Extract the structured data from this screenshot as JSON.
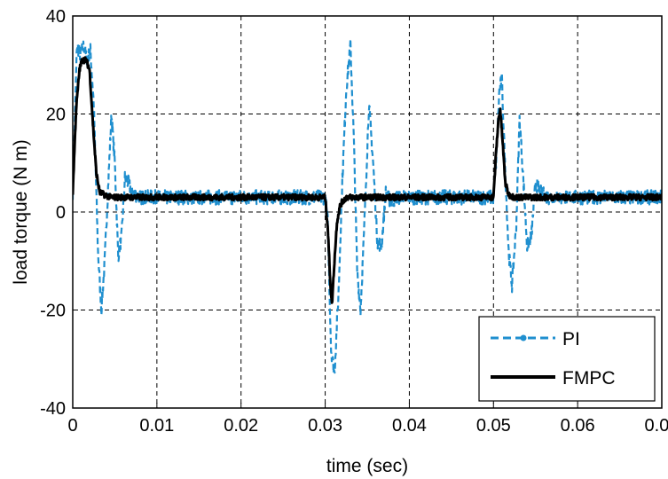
{
  "chart_data": {
    "type": "line",
    "title": "",
    "xlabel": "time (sec)",
    "ylabel": "load torque (N m)",
    "xlim": [
      0,
      0.07
    ],
    "ylim": [
      -40,
      40
    ],
    "x_ticks": [
      0,
      0.01,
      0.02,
      0.03,
      0.04,
      0.05,
      0.06,
      0.07
    ],
    "x_tick_labels": [
      "0",
      "0.01",
      "0.02",
      "0.03",
      "0.04",
      "0.05",
      "0.06",
      "0.07"
    ],
    "y_ticks": [
      -40,
      -20,
      0,
      20,
      40
    ],
    "y_tick_labels": [
      "-40",
      "-20",
      "0",
      "20",
      "40"
    ],
    "grid": true,
    "legend_position": "bottom-right",
    "series": [
      {
        "name": "PI",
        "color": "#1f8fcf",
        "style": "dashed-dot-marker",
        "noise_amplitude": 1.5,
        "points": [
          [
            0,
            4
          ],
          [
            0.0005,
            34
          ],
          [
            0.0009,
            32
          ],
          [
            0.0013,
            34
          ],
          [
            0.0017,
            31
          ],
          [
            0.0021,
            33
          ],
          [
            0.0025,
            22
          ],
          [
            0.003,
            -8
          ],
          [
            0.0034,
            -20
          ],
          [
            0.0038,
            -10
          ],
          [
            0.0042,
            5
          ],
          [
            0.0046,
            20
          ],
          [
            0.005,
            10
          ],
          [
            0.0054,
            -9
          ],
          [
            0.0058,
            -5
          ],
          [
            0.0062,
            7
          ],
          [
            0.0066,
            6
          ],
          [
            0.007,
            4
          ],
          [
            0.008,
            3
          ],
          [
            0.03,
            3
          ],
          [
            0.0303,
            -2
          ],
          [
            0.0307,
            -28
          ],
          [
            0.0311,
            -33
          ],
          [
            0.0316,
            -16
          ],
          [
            0.032,
            5
          ],
          [
            0.0325,
            25
          ],
          [
            0.033,
            34
          ],
          [
            0.0334,
            15
          ],
          [
            0.0338,
            -12
          ],
          [
            0.0342,
            -20
          ],
          [
            0.0346,
            -5
          ],
          [
            0.0352,
            22
          ],
          [
            0.0357,
            10
          ],
          [
            0.0362,
            -6
          ],
          [
            0.0367,
            -7
          ],
          [
            0.0372,
            4
          ],
          [
            0.0378,
            2
          ],
          [
            0.0385,
            3
          ],
          [
            0.05,
            3
          ],
          [
            0.0503,
            10
          ],
          [
            0.0507,
            25
          ],
          [
            0.051,
            27
          ],
          [
            0.0514,
            8
          ],
          [
            0.0518,
            -8
          ],
          [
            0.0522,
            -15
          ],
          [
            0.0527,
            -3
          ],
          [
            0.0531,
            19
          ],
          [
            0.0535,
            8
          ],
          [
            0.054,
            -7
          ],
          [
            0.0545,
            -5
          ],
          [
            0.055,
            6
          ],
          [
            0.0556,
            4
          ],
          [
            0.0565,
            3
          ],
          [
            0.07,
            3
          ]
        ]
      },
      {
        "name": "FMPC",
        "color": "#000000",
        "style": "solid",
        "noise_amplitude": 0.6,
        "points": [
          [
            0,
            4
          ],
          [
            0.0004,
            21
          ],
          [
            0.0008,
            29
          ],
          [
            0.0011,
            31
          ],
          [
            0.0016,
            31
          ],
          [
            0.002,
            29
          ],
          [
            0.0024,
            18
          ],
          [
            0.0028,
            8
          ],
          [
            0.0032,
            4
          ],
          [
            0.0038,
            3.5
          ],
          [
            0.0045,
            3
          ],
          [
            0.03,
            3
          ],
          [
            0.0303,
            -3
          ],
          [
            0.0306,
            -14
          ],
          [
            0.0308,
            -19
          ],
          [
            0.0311,
            -10
          ],
          [
            0.0314,
            -2
          ],
          [
            0.0318,
            1.5
          ],
          [
            0.0325,
            3
          ],
          [
            0.05,
            3
          ],
          [
            0.0503,
            12
          ],
          [
            0.0506,
            19
          ],
          [
            0.0508,
            21
          ],
          [
            0.0511,
            14
          ],
          [
            0.0514,
            6
          ],
          [
            0.0518,
            3.5
          ],
          [
            0.0525,
            3
          ],
          [
            0.07,
            3
          ]
        ]
      }
    ]
  }
}
